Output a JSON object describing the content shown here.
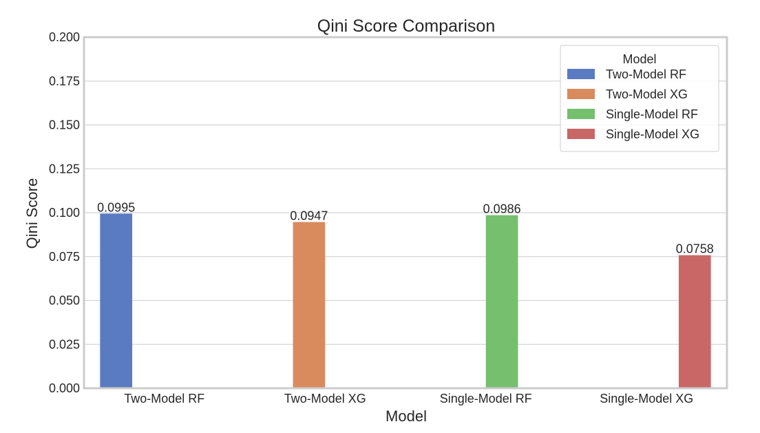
{
  "chart_data": {
    "type": "bar",
    "title": "Qini Score Comparison",
    "xlabel": "Model",
    "ylabel": "Qini Score",
    "ylim": [
      0,
      0.2
    ],
    "yticks": [
      "0.000",
      "0.025",
      "0.050",
      "0.075",
      "0.100",
      "0.125",
      "0.150",
      "0.175",
      "0.200"
    ],
    "categories": [
      "Two-Model RF",
      "Two-Model XG",
      "Single-Model RF",
      "Single-Model XG"
    ],
    "series": [
      {
        "name": "Two-Model RF",
        "color": "#5a7bc2",
        "values": [
          0.0995,
          null,
          null,
          null
        ],
        "label": "0.0995"
      },
      {
        "name": "Two-Model XG",
        "color": "#d98b5e",
        "values": [
          null,
          0.0947,
          null,
          null
        ],
        "label": "0.0947"
      },
      {
        "name": "Single-Model RF",
        "color": "#75bf6e",
        "values": [
          null,
          null,
          0.0986,
          null
        ],
        "label": "0.0986"
      },
      {
        "name": "Single-Model XG",
        "color": "#c96767",
        "values": [
          null,
          null,
          null,
          0.0758
        ],
        "label": "0.0758"
      }
    ],
    "legend": {
      "title": "Model",
      "position": "top-right"
    },
    "grid": true
  }
}
